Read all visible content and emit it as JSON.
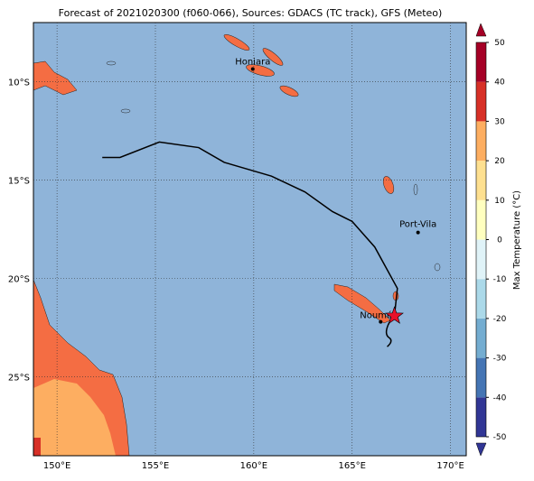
{
  "title": "Forecast of 2021020300 (f060-066), Sources: GDACS (TC track), GFS (Meteo)",
  "map": {
    "lonlim": [
      148.8,
      170.8
    ],
    "latlim": [
      -29.0,
      -7.0
    ],
    "lonticks": [
      {
        "value": 150,
        "label": "150°E"
      },
      {
        "value": 155,
        "label": "155°E"
      },
      {
        "value": 160,
        "label": "160°E"
      },
      {
        "value": 165,
        "label": "165°E"
      },
      {
        "value": 170,
        "label": "170°E"
      }
    ],
    "latticks": [
      {
        "value": -10,
        "label": "10°S"
      },
      {
        "value": -15,
        "label": "15°S"
      },
      {
        "value": -20,
        "label": "20°S"
      },
      {
        "value": -25,
        "label": "25°S"
      }
    ],
    "grid": true,
    "track": {
      "color": "#000000",
      "lon": [
        152.3,
        153.2,
        155.2,
        157.2,
        158.5,
        160.9,
        162.6,
        164.0,
        165.0,
        166.15,
        167.3,
        167.15
      ],
      "lat": [
        -13.85,
        -13.85,
        -13.07,
        -13.35,
        -14.1,
        -14.8,
        -15.6,
        -16.6,
        -17.1,
        -18.4,
        -20.5,
        -21.9
      ]
    },
    "cities": [
      {
        "name": "Honiara",
        "lon": 159.95,
        "lat": -9.36
      },
      {
        "name": "Port-Vila",
        "lon": 168.35,
        "lat": -17.66
      },
      {
        "name": "Nouméa",
        "lon": 166.45,
        "lat": -22.2
      }
    ]
  },
  "colorbar": {
    "label": "Max Temperature (°C)",
    "lim": [
      -50,
      50
    ],
    "ticks": [
      -50,
      -40,
      -30,
      -20,
      -10,
      0,
      10,
      20,
      30,
      40,
      50
    ],
    "colors": [
      "#313695",
      "#4575b4",
      "#74add1",
      "#abd9e9",
      "#e0f3f8",
      "#ffffbf",
      "#fee090",
      "#fdae61",
      "#d73027",
      "#a50026"
    ]
  }
}
